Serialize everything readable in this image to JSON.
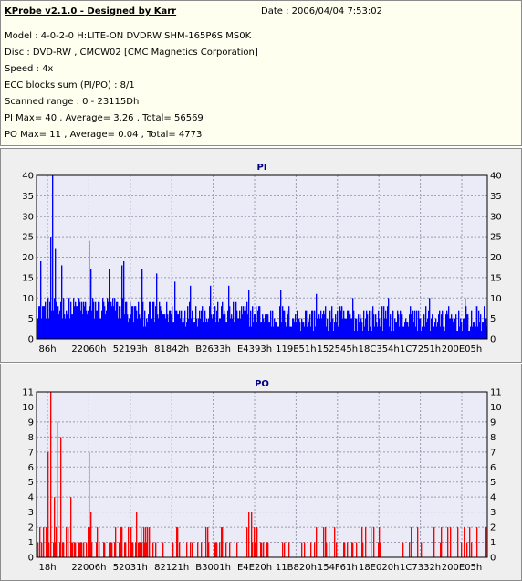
{
  "info": {
    "title": "KProbe v2.1.0 - Designed by Karr",
    "date": "Date : 2006/04/04 7:53:02",
    "lines": [
      "Model : 4-0-2-0 H:LITE-ON DVDRW SHM-165P6S MS0K",
      "Disc : DVD-RW , CMCW02 [CMC Magnetics Corporation]",
      "Speed : 4x",
      "ECC blocks sum (PI/PO) : 8/1",
      "Scanned range : 0 - 23115Dh",
      "PI Max= 40 , Average= 3.26 , Total= 56569",
      "PO Max= 11 , Average= 0.04 , Total= 4773"
    ]
  },
  "colors": {
    "pi": "#0000ff",
    "po": "#ff0000",
    "plot_bg": "#ebebf8",
    "title": "#000080"
  },
  "chart_data": [
    {
      "type": "bar",
      "title": "PI",
      "ylim": [
        0,
        40
      ],
      "yticks": [
        0,
        5,
        10,
        15,
        20,
        25,
        30,
        35,
        40
      ],
      "xtick_labels": [
        "86h",
        "22060h",
        "52193h",
        "81842h",
        "B2633h",
        "E4393h",
        "119E51h",
        "152545h",
        "18C354h",
        "1C7251h",
        "200E05h"
      ],
      "grid": true,
      "x_range": [
        "0h",
        "23115Dh"
      ],
      "samples": 494,
      "max": 40,
      "average": 3.26,
      "spikes": [
        {
          "at": 0.035,
          "value": 40
        },
        {
          "at": 0.03,
          "value": 25
        },
        {
          "at": 0.008,
          "value": 19
        },
        {
          "at": 0.04,
          "value": 22
        },
        {
          "at": 0.055,
          "value": 18
        },
        {
          "at": 0.115,
          "value": 24
        },
        {
          "at": 0.12,
          "value": 17
        },
        {
          "at": 0.16,
          "value": 17
        },
        {
          "at": 0.188,
          "value": 18
        },
        {
          "at": 0.192,
          "value": 19
        },
        {
          "at": 0.232,
          "value": 17
        },
        {
          "at": 0.265,
          "value": 16
        },
        {
          "at": 0.305,
          "value": 14
        },
        {
          "at": 0.34,
          "value": 13
        },
        {
          "at": 0.385,
          "value": 13
        },
        {
          "at": 0.425,
          "value": 13
        },
        {
          "at": 0.47,
          "value": 12
        },
        {
          "at": 0.54,
          "value": 12
        },
        {
          "at": 0.62,
          "value": 11
        },
        {
          "at": 0.7,
          "value": 10
        },
        {
          "at": 0.78,
          "value": 10
        },
        {
          "at": 0.87,
          "value": 10
        },
        {
          "at": 0.95,
          "value": 10
        }
      ]
    },
    {
      "type": "bar",
      "title": "PO",
      "ylim": [
        0,
        11
      ],
      "yticks": [
        0,
        1,
        2,
        3,
        4,
        5,
        6,
        7,
        8,
        9,
        10,
        11
      ],
      "xtick_labels": [
        "18h",
        "22006h",
        "52031h",
        "82121h",
        "B3001h",
        "E4E20h",
        "11B820h",
        "154F61h",
        "18E020h",
        "1C7332h",
        "200E05h"
      ],
      "grid": true,
      "x_range": [
        "0h",
        "23115Dh"
      ],
      "samples": 494,
      "max": 11,
      "average": 0.04,
      "spikes": [
        {
          "at": 0.03,
          "value": 11
        },
        {
          "at": 0.025,
          "value": 7
        },
        {
          "at": 0.045,
          "value": 9
        },
        {
          "at": 0.052,
          "value": 8
        },
        {
          "at": 0.038,
          "value": 4
        },
        {
          "at": 0.075,
          "value": 4
        },
        {
          "at": 0.115,
          "value": 7
        },
        {
          "at": 0.12,
          "value": 3
        },
        {
          "at": 0.22,
          "value": 3
        },
        {
          "at": 0.175,
          "value": 2
        },
        {
          "at": 0.31,
          "value": 2
        },
        {
          "at": 0.47,
          "value": 3
        },
        {
          "at": 0.475,
          "value": 3
        },
        {
          "at": 0.64,
          "value": 2
        },
        {
          "at": 0.76,
          "value": 2
        },
        {
          "at": 0.91,
          "value": 2
        },
        {
          "at": 0.96,
          "value": 2
        }
      ]
    }
  ]
}
